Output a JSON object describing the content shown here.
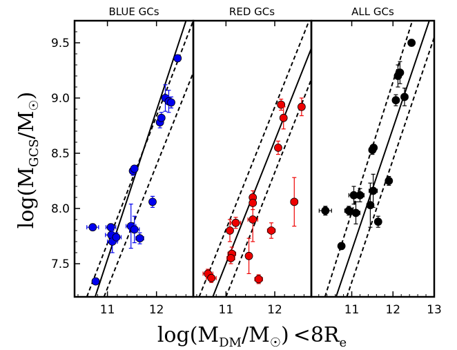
{
  "chart_data": {
    "type": "scatter",
    "ylabel": {
      "base": "log(M",
      "sub": "GCS",
      "sep": "/M",
      "sun": "☉",
      "close": ")"
    },
    "xlabel": {
      "base": "log(M",
      "sub": "DM",
      "sep": "/M",
      "sun": "☉",
      "close": ")",
      "suffix": "<8R",
      "suffix_sub": "e"
    },
    "ylim": [
      7.2,
      9.7
    ],
    "yticks": [
      "7.5",
      "8.0",
      "8.5",
      "9.0",
      "9.5"
    ],
    "panels": [
      {
        "title": "BLUE GCs",
        "color": "#0000ee",
        "xlim": [
          10.33,
          12.75
        ],
        "xticks": [
          "11",
          "12"
        ],
        "points": [
          {
            "x": 10.7,
            "y": 7.83,
            "xerr": 0.12,
            "yerr": 0.03
          },
          {
            "x": 10.76,
            "y": 7.34,
            "xerr": 0.0,
            "yerr": 0.03
          },
          {
            "x": 11.07,
            "y": 7.83,
            "xerr": 0.1,
            "yerr": 0.03
          },
          {
            "x": 11.08,
            "y": 7.76,
            "xerr": 0.12,
            "yerr": 0.05
          },
          {
            "x": 11.1,
            "y": 7.7,
            "xerr": 0.1,
            "yerr": 0.1
          },
          {
            "x": 11.18,
            "y": 7.74,
            "xerr": 0.1,
            "yerr": 0.04
          },
          {
            "x": 11.48,
            "y": 7.84,
            "xerr": 0.1,
            "yerr": 0.2
          },
          {
            "x": 11.55,
            "y": 7.81,
            "xerr": 0.1,
            "yerr": 0.12
          },
          {
            "x": 11.52,
            "y": 8.34,
            "xerr": 0.06,
            "yerr": 0.04
          },
          {
            "x": 11.55,
            "y": 8.36,
            "xerr": 0.06,
            "yerr": 0.03
          },
          {
            "x": 11.66,
            "y": 7.73,
            "xerr": 0.08,
            "yerr": 0.05
          },
          {
            "x": 11.92,
            "y": 8.06,
            "xerr": 0.06,
            "yerr": 0.05
          },
          {
            "x": 12.07,
            "y": 8.78,
            "xerr": 0.06,
            "yerr": 0.05
          },
          {
            "x": 12.1,
            "y": 8.82,
            "xerr": 0.06,
            "yerr": 0.05
          },
          {
            "x": 12.18,
            "y": 9.0,
            "xerr": 0.06,
            "yerr": 0.12
          },
          {
            "x": 12.25,
            "y": 8.97,
            "xerr": 0.06,
            "yerr": 0.1
          },
          {
            "x": 12.3,
            "y": 8.96,
            "xerr": 0.06,
            "yerr": 0.05
          },
          {
            "x": 12.43,
            "y": 9.36,
            "xerr": 0.04,
            "yerr": 0.03
          }
        ],
        "fit_line": [
          [
            10.75,
            7.2
          ],
          [
            12.75,
            9.9
          ]
        ],
        "scatter_upper": [
          [
            10.58,
            7.2
          ],
          [
            12.75,
            9.7
          ]
        ],
        "scatter_lower": [
          [
            10.93,
            7.2
          ],
          [
            12.75,
            9.23
          ]
        ]
      },
      {
        "title": "RED GCs",
        "color": "#ee0000",
        "xlim": [
          10.33,
          12.75
        ],
        "xticks": [
          "11",
          "12"
        ],
        "points": [
          {
            "x": 10.63,
            "y": 7.41,
            "xerr": 0.1,
            "yerr": 0.04
          },
          {
            "x": 10.7,
            "y": 7.37,
            "xerr": 0.1,
            "yerr": 0.04
          },
          {
            "x": 11.08,
            "y": 7.8,
            "xerr": 0.06,
            "yerr": 0.1
          },
          {
            "x": 11.12,
            "y": 7.59,
            "xerr": 0.08,
            "yerr": 0.06
          },
          {
            "x": 11.1,
            "y": 7.55,
            "xerr": 0.08,
            "yerr": 0.05
          },
          {
            "x": 11.2,
            "y": 7.87,
            "xerr": 0.1,
            "yerr": 0.05
          },
          {
            "x": 11.47,
            "y": 7.57,
            "xerr": 0.06,
            "yerr": 0.16
          },
          {
            "x": 11.55,
            "y": 7.9,
            "xerr": 0.1,
            "yerr": 0.2
          },
          {
            "x": 11.55,
            "y": 8.1,
            "xerr": 0.05,
            "yerr": 0.06
          },
          {
            "x": 11.55,
            "y": 8.05,
            "xerr": 0.06,
            "yerr": 0.06
          },
          {
            "x": 11.67,
            "y": 7.36,
            "xerr": 0.08,
            "yerr": 0.04
          },
          {
            "x": 11.93,
            "y": 7.8,
            "xerr": 0.08,
            "yerr": 0.07
          },
          {
            "x": 12.07,
            "y": 8.55,
            "xerr": 0.05,
            "yerr": 0.06
          },
          {
            "x": 12.13,
            "y": 8.94,
            "xerr": 0.06,
            "yerr": 0.05
          },
          {
            "x": 12.18,
            "y": 8.82,
            "xerr": 0.05,
            "yerr": 0.1
          },
          {
            "x": 12.4,
            "y": 8.06,
            "xerr": 0.07,
            "yerr": 0.22
          },
          {
            "x": 12.55,
            "y": 8.92,
            "xerr": 0.05,
            "yerr": 0.08
          }
        ],
        "fit_line": [
          [
            10.73,
            7.2
          ],
          [
            12.75,
            9.45
          ]
        ],
        "scatter_upper": [
          [
            10.45,
            7.2
          ],
          [
            12.75,
            9.75
          ]
        ],
        "scatter_lower": [
          [
            11.0,
            7.2
          ],
          [
            12.75,
            9.17
          ]
        ]
      },
      {
        "title": "ALL GCs",
        "color": "#000000",
        "xlim": [
          10.02,
          13.0
        ],
        "xticks": [
          "11",
          "12",
          "13"
        ],
        "points": [
          {
            "x": 10.36,
            "y": 7.98,
            "xerr": 0.15,
            "yerr": 0.04
          },
          {
            "x": 10.75,
            "y": 7.66,
            "xerr": 0.05,
            "yerr": 0.03
          },
          {
            "x": 10.93,
            "y": 7.98,
            "xerr": 0.1,
            "yerr": 0.04
          },
          {
            "x": 11.05,
            "y": 8.12,
            "xerr": 0.12,
            "yerr": 0.08
          },
          {
            "x": 11.1,
            "y": 7.96,
            "xerr": 0.1,
            "yerr": 0.1
          },
          {
            "x": 11.2,
            "y": 8.12,
            "xerr": 0.1,
            "yerr": 0.06
          },
          {
            "x": 11.45,
            "y": 8.03,
            "xerr": 0.08,
            "yerr": 0.2
          },
          {
            "x": 11.52,
            "y": 8.16,
            "xerr": 0.1,
            "yerr": 0.15
          },
          {
            "x": 11.5,
            "y": 8.53,
            "xerr": 0.06,
            "yerr": 0.04
          },
          {
            "x": 11.53,
            "y": 8.55,
            "xerr": 0.06,
            "yerr": 0.03
          },
          {
            "x": 11.64,
            "y": 7.88,
            "xerr": 0.06,
            "yerr": 0.05
          },
          {
            "x": 11.9,
            "y": 8.25,
            "xerr": 0.06,
            "yerr": 0.04
          },
          {
            "x": 12.07,
            "y": 8.98,
            "xerr": 0.06,
            "yerr": 0.05
          },
          {
            "x": 12.12,
            "y": 9.2,
            "xerr": 0.06,
            "yerr": 0.1
          },
          {
            "x": 12.17,
            "y": 9.23,
            "xerr": 0.05,
            "yerr": 0.1
          },
          {
            "x": 12.28,
            "y": 9.01,
            "xerr": 0.08,
            "yerr": 0.08
          },
          {
            "x": 12.45,
            "y": 9.5,
            "xerr": 0.04,
            "yerr": 0.03
          }
        ],
        "fit_line": [
          [
            10.62,
            7.2
          ],
          [
            12.88,
            9.7
          ]
        ],
        "scatter_upper": [
          [
            10.35,
            7.2
          ],
          [
            12.47,
            9.7
          ]
        ],
        "scatter_lower": [
          [
            10.88,
            7.2
          ],
          [
            13.0,
            9.55
          ]
        ]
      }
    ]
  }
}
